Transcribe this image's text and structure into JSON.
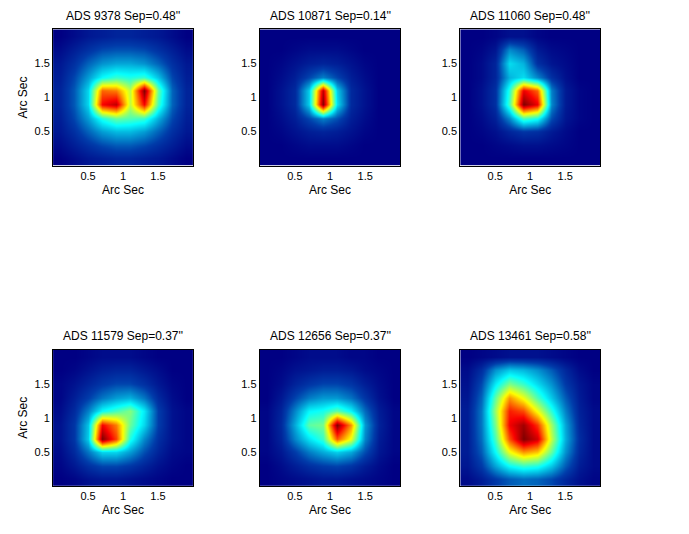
{
  "chart_data": [
    {
      "type": "heatmap",
      "title": "ADS 9378 Sep=0.48''",
      "xlabel": "Arc Sec",
      "ylabel": "Arc Sec",
      "color": "Jet",
      "xlim": [
        0,
        2
      ],
      "ylim": [
        0,
        2
      ],
      "xticks": [
        0.5,
        1,
        1.5
      ],
      "yticks": [
        0.5,
        1,
        1.5
      ],
      "x": [
        0.1,
        0.3,
        0.5,
        0.7,
        0.9,
        1.1,
        1.3,
        1.5,
        1.7,
        1.9
      ],
      "y": [
        0.1,
        0.3,
        0.5,
        0.7,
        0.9,
        1.1,
        1.3,
        1.5,
        1.7,
        1.9
      ],
      "z": [
        [
          0.1,
          0.12,
          0.14,
          0.15,
          0.16,
          0.16,
          0.15,
          0.14,
          0.12,
          0.1
        ],
        [
          0.12,
          0.15,
          0.18,
          0.21,
          0.23,
          0.23,
          0.21,
          0.18,
          0.15,
          0.12
        ],
        [
          0.14,
          0.18,
          0.24,
          0.3,
          0.33,
          0.33,
          0.3,
          0.24,
          0.18,
          0.14
        ],
        [
          0.15,
          0.21,
          0.3,
          0.42,
          0.48,
          0.46,
          0.44,
          0.32,
          0.21,
          0.15
        ],
        [
          0.16,
          0.23,
          0.36,
          0.8,
          0.85,
          0.55,
          0.8,
          0.45,
          0.24,
          0.16
        ],
        [
          0.16,
          0.23,
          0.36,
          0.72,
          0.7,
          0.55,
          0.9,
          0.48,
          0.24,
          0.16
        ],
        [
          0.15,
          0.21,
          0.3,
          0.4,
          0.44,
          0.42,
          0.44,
          0.34,
          0.21,
          0.15
        ],
        [
          0.14,
          0.18,
          0.24,
          0.29,
          0.31,
          0.31,
          0.29,
          0.24,
          0.18,
          0.14
        ],
        [
          0.12,
          0.15,
          0.18,
          0.21,
          0.22,
          0.22,
          0.21,
          0.18,
          0.15,
          0.12
        ],
        [
          0.1,
          0.12,
          0.14,
          0.15,
          0.16,
          0.16,
          0.15,
          0.14,
          0.12,
          0.1
        ]
      ]
    },
    {
      "type": "heatmap",
      "title": "ADS 10871 Sep=0.14''",
      "xlabel": "Arc Sec",
      "color": "Jet",
      "xlim": [
        0,
        2
      ],
      "ylim": [
        0,
        2
      ],
      "xticks": [
        0.5,
        1,
        1.5
      ],
      "yticks": [
        0.5,
        1,
        1.5
      ],
      "x": [
        0.1,
        0.3,
        0.5,
        0.7,
        0.9,
        1.1,
        1.3,
        1.5,
        1.7,
        1.9
      ],
      "y": [
        0.1,
        0.3,
        0.5,
        0.7,
        0.9,
        1.1,
        1.3,
        1.5,
        1.7,
        1.9
      ],
      "z": [
        [
          0.05,
          0.05,
          0.05,
          0.05,
          0.05,
          0.05,
          0.05,
          0.05,
          0.05,
          0.05
        ],
        [
          0.05,
          0.05,
          0.06,
          0.07,
          0.07,
          0.07,
          0.06,
          0.05,
          0.05,
          0.05
        ],
        [
          0.05,
          0.06,
          0.08,
          0.1,
          0.11,
          0.1,
          0.08,
          0.06,
          0.05,
          0.05
        ],
        [
          0.05,
          0.07,
          0.1,
          0.16,
          0.22,
          0.17,
          0.1,
          0.07,
          0.05,
          0.05
        ],
        [
          0.05,
          0.08,
          0.12,
          0.3,
          0.85,
          0.32,
          0.12,
          0.08,
          0.05,
          0.05
        ],
        [
          0.05,
          0.08,
          0.12,
          0.3,
          0.8,
          0.3,
          0.12,
          0.08,
          0.05,
          0.05
        ],
        [
          0.05,
          0.07,
          0.1,
          0.16,
          0.22,
          0.16,
          0.1,
          0.07,
          0.05,
          0.05
        ],
        [
          0.05,
          0.06,
          0.08,
          0.1,
          0.11,
          0.1,
          0.08,
          0.06,
          0.05,
          0.05
        ],
        [
          0.05,
          0.05,
          0.06,
          0.07,
          0.07,
          0.07,
          0.06,
          0.05,
          0.05,
          0.05
        ],
        [
          0.05,
          0.05,
          0.05,
          0.05,
          0.05,
          0.05,
          0.05,
          0.05,
          0.05,
          0.05
        ]
      ]
    },
    {
      "type": "heatmap",
      "title": "ADS 11060 Sep=0.48''",
      "xlabel": "Arc Sec",
      "color": "Jet",
      "xlim": [
        0,
        2
      ],
      "ylim": [
        0,
        2
      ],
      "xticks": [
        0.5,
        1,
        1.5
      ],
      "yticks": [
        0.5,
        1,
        1.5
      ],
      "x": [
        0.1,
        0.3,
        0.5,
        0.7,
        0.9,
        1.1,
        1.3,
        1.5,
        1.7,
        1.9
      ],
      "y": [
        0.1,
        0.3,
        0.5,
        0.7,
        0.9,
        1.1,
        1.3,
        1.5,
        1.7,
        1.9
      ],
      "z": [
        [
          0.05,
          0.05,
          0.05,
          0.05,
          0.05,
          0.05,
          0.05,
          0.05,
          0.05,
          0.05
        ],
        [
          0.05,
          0.05,
          0.06,
          0.07,
          0.08,
          0.08,
          0.07,
          0.06,
          0.05,
          0.05
        ],
        [
          0.05,
          0.06,
          0.08,
          0.12,
          0.15,
          0.14,
          0.1,
          0.07,
          0.05,
          0.05
        ],
        [
          0.05,
          0.07,
          0.11,
          0.25,
          0.45,
          0.4,
          0.18,
          0.09,
          0.06,
          0.05
        ],
        [
          0.05,
          0.08,
          0.14,
          0.45,
          0.95,
          0.85,
          0.25,
          0.1,
          0.06,
          0.05
        ],
        [
          0.05,
          0.08,
          0.14,
          0.42,
          0.85,
          0.75,
          0.24,
          0.1,
          0.06,
          0.05
        ],
        [
          0.05,
          0.07,
          0.12,
          0.3,
          0.35,
          0.25,
          0.14,
          0.08,
          0.05,
          0.05
        ],
        [
          0.05,
          0.07,
          0.12,
          0.35,
          0.3,
          0.14,
          0.09,
          0.07,
          0.05,
          0.05
        ],
        [
          0.05,
          0.06,
          0.09,
          0.25,
          0.2,
          0.1,
          0.07,
          0.06,
          0.05,
          0.05
        ],
        [
          0.05,
          0.05,
          0.06,
          0.08,
          0.08,
          0.06,
          0.05,
          0.05,
          0.05,
          0.05
        ]
      ]
    },
    {
      "type": "heatmap",
      "title": "ADS 11579 Sep=0.37''",
      "xlabel": "Arc Sec",
      "ylabel": "Arc Sec",
      "color": "Jet",
      "xlim": [
        0,
        2
      ],
      "ylim": [
        0,
        2
      ],
      "xticks": [
        0.5,
        1,
        1.5
      ],
      "yticks": [
        0.5,
        1,
        1.5
      ],
      "x": [
        0.1,
        0.3,
        0.5,
        0.7,
        0.9,
        1.1,
        1.3,
        1.5,
        1.7,
        1.9
      ],
      "y": [
        0.1,
        0.3,
        0.5,
        0.7,
        0.9,
        1.1,
        1.3,
        1.5,
        1.7,
        1.9
      ],
      "z": [
        [
          0.1,
          0.11,
          0.13,
          0.14,
          0.14,
          0.13,
          0.12,
          0.11,
          0.1,
          0.1
        ],
        [
          0.11,
          0.14,
          0.18,
          0.21,
          0.21,
          0.19,
          0.16,
          0.13,
          0.11,
          0.1
        ],
        [
          0.12,
          0.17,
          0.26,
          0.36,
          0.36,
          0.3,
          0.22,
          0.16,
          0.12,
          0.11
        ],
        [
          0.13,
          0.19,
          0.35,
          0.9,
          0.75,
          0.42,
          0.28,
          0.18,
          0.13,
          0.11
        ],
        [
          0.13,
          0.19,
          0.34,
          0.8,
          0.7,
          0.48,
          0.36,
          0.2,
          0.13,
          0.11
        ],
        [
          0.12,
          0.17,
          0.27,
          0.4,
          0.45,
          0.5,
          0.38,
          0.2,
          0.13,
          0.11
        ],
        [
          0.11,
          0.15,
          0.2,
          0.26,
          0.3,
          0.32,
          0.26,
          0.17,
          0.12,
          0.1
        ],
        [
          0.11,
          0.13,
          0.16,
          0.19,
          0.21,
          0.21,
          0.18,
          0.14,
          0.11,
          0.1
        ],
        [
          0.1,
          0.11,
          0.13,
          0.15,
          0.16,
          0.16,
          0.14,
          0.12,
          0.1,
          0.1
        ],
        [
          0.1,
          0.1,
          0.11,
          0.12,
          0.12,
          0.12,
          0.11,
          0.1,
          0.1,
          0.1
        ]
      ]
    },
    {
      "type": "heatmap",
      "title": "ADS 12656 Sep=0.37''",
      "xlabel": "Arc Sec",
      "color": "Jet",
      "xlim": [
        0,
        2
      ],
      "ylim": [
        0,
        2
      ],
      "xticks": [
        0.5,
        1,
        1.5
      ],
      "yticks": [
        0.5,
        1,
        1.5
      ],
      "x": [
        0.1,
        0.3,
        0.5,
        0.7,
        0.9,
        1.1,
        1.3,
        1.5,
        1.7,
        1.9
      ],
      "y": [
        0.1,
        0.3,
        0.5,
        0.7,
        0.9,
        1.1,
        1.3,
        1.5,
        1.7,
        1.9
      ],
      "z": [
        [
          0.1,
          0.11,
          0.12,
          0.13,
          0.14,
          0.14,
          0.13,
          0.12,
          0.11,
          0.1
        ],
        [
          0.1,
          0.12,
          0.15,
          0.18,
          0.2,
          0.21,
          0.19,
          0.15,
          0.12,
          0.1
        ],
        [
          0.11,
          0.14,
          0.2,
          0.27,
          0.32,
          0.36,
          0.32,
          0.22,
          0.14,
          0.11
        ],
        [
          0.11,
          0.16,
          0.28,
          0.38,
          0.45,
          0.75,
          0.6,
          0.28,
          0.15,
          0.11
        ],
        [
          0.11,
          0.17,
          0.32,
          0.48,
          0.5,
          0.92,
          0.7,
          0.3,
          0.16,
          0.11
        ],
        [
          0.11,
          0.16,
          0.28,
          0.4,
          0.42,
          0.48,
          0.4,
          0.25,
          0.15,
          0.11
        ],
        [
          0.1,
          0.14,
          0.21,
          0.27,
          0.3,
          0.3,
          0.26,
          0.19,
          0.13,
          0.1
        ],
        [
          0.1,
          0.12,
          0.16,
          0.19,
          0.21,
          0.21,
          0.19,
          0.15,
          0.12,
          0.1
        ],
        [
          0.1,
          0.11,
          0.13,
          0.14,
          0.15,
          0.15,
          0.14,
          0.12,
          0.11,
          0.1
        ],
        [
          0.1,
          0.1,
          0.11,
          0.12,
          0.12,
          0.12,
          0.11,
          0.11,
          0.1,
          0.1
        ]
      ]
    },
    {
      "type": "heatmap",
      "title": "ADS 13461 Sep=0.58''",
      "xlabel": "Arc Sec",
      "color": "Jet",
      "xlim": [
        0,
        2
      ],
      "ylim": [
        0,
        2
      ],
      "xticks": [
        0.5,
        1,
        1.5
      ],
      "yticks": [
        0.5,
        1,
        1.5
      ],
      "x": [
        0.1,
        0.3,
        0.5,
        0.7,
        0.9,
        1.1,
        1.3,
        1.5,
        1.7,
        1.9
      ],
      "y": [
        0.1,
        0.3,
        0.5,
        0.7,
        0.9,
        1.1,
        1.3,
        1.5,
        1.7,
        1.9
      ],
      "z": [
        [
          0.12,
          0.15,
          0.2,
          0.24,
          0.26,
          0.25,
          0.22,
          0.17,
          0.13,
          0.11
        ],
        [
          0.14,
          0.2,
          0.32,
          0.42,
          0.46,
          0.44,
          0.36,
          0.24,
          0.15,
          0.12
        ],
        [
          0.15,
          0.24,
          0.42,
          0.62,
          0.72,
          0.68,
          0.5,
          0.3,
          0.17,
          0.12
        ],
        [
          0.15,
          0.26,
          0.48,
          0.78,
          0.95,
          0.88,
          0.58,
          0.33,
          0.18,
          0.12
        ],
        [
          0.15,
          0.27,
          0.52,
          0.85,
          0.92,
          0.8,
          0.55,
          0.32,
          0.17,
          0.12
        ],
        [
          0.15,
          0.27,
          0.55,
          0.82,
          0.78,
          0.62,
          0.45,
          0.28,
          0.16,
          0.12
        ],
        [
          0.14,
          0.25,
          0.5,
          0.72,
          0.62,
          0.48,
          0.36,
          0.24,
          0.15,
          0.11
        ],
        [
          0.13,
          0.22,
          0.4,
          0.52,
          0.46,
          0.38,
          0.3,
          0.2,
          0.14,
          0.11
        ],
        [
          0.12,
          0.18,
          0.3,
          0.36,
          0.34,
          0.3,
          0.24,
          0.17,
          0.12,
          0.1
        ],
        [
          0.1,
          0.11,
          0.12,
          0.13,
          0.13,
          0.13,
          0.12,
          0.11,
          0.1,
          0.1
        ]
      ]
    }
  ]
}
